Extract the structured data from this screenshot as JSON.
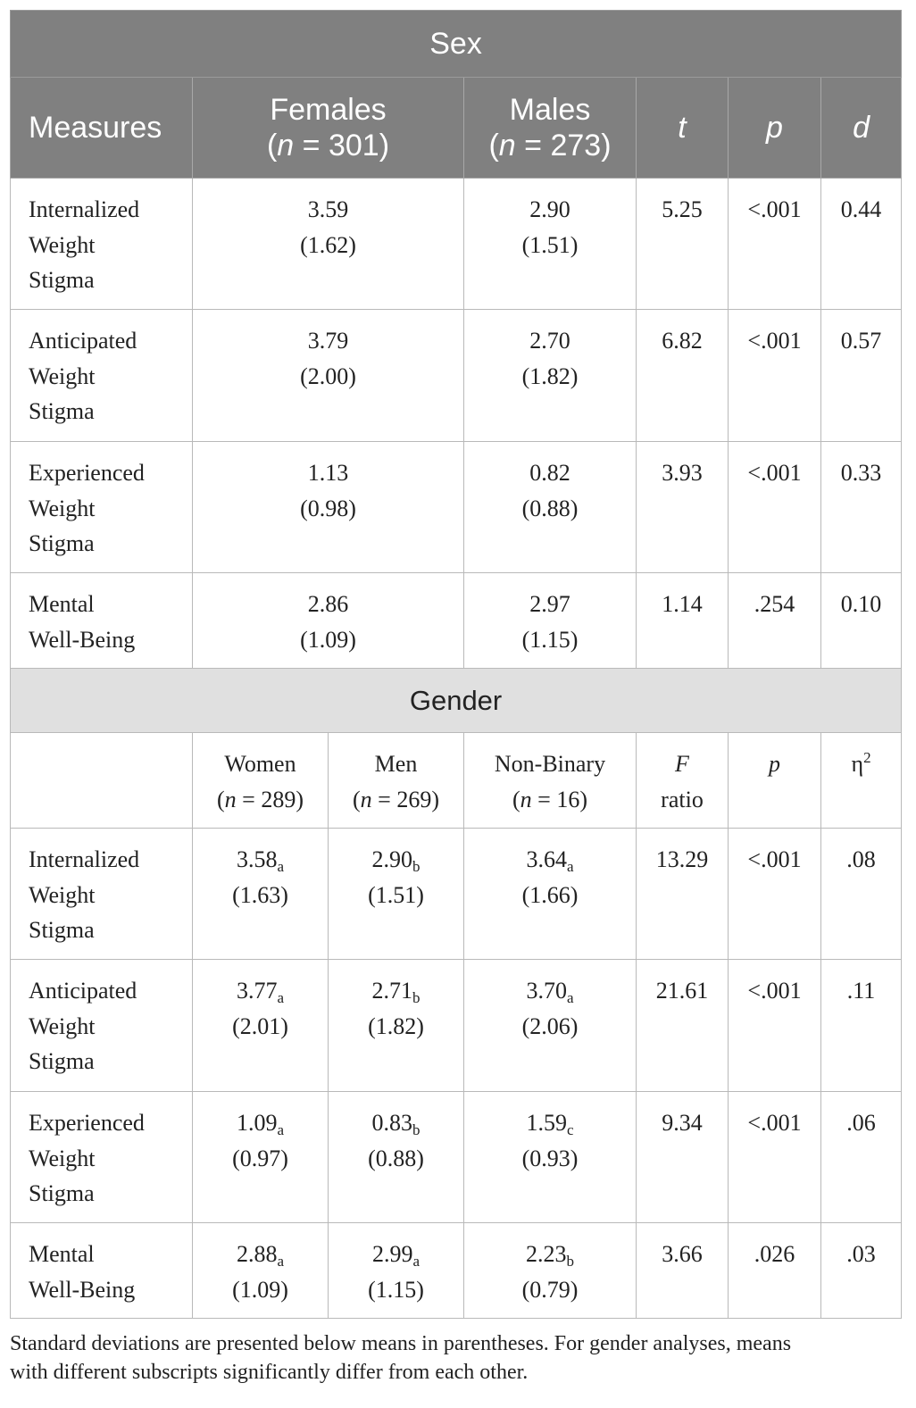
{
  "sex_section": {
    "band_title": "Sex",
    "headers": {
      "measures": "Measures",
      "females_label": "Females",
      "females_n": "= 301)",
      "males_label": "Males",
      "males_n": "= 273)",
      "t": "t",
      "p": "p",
      "d": "d"
    },
    "rows": [
      {
        "measure": [
          "Internalized",
          "Weight",
          "Stigma"
        ],
        "females_mean": "3.59",
        "females_sd": "(1.62)",
        "males_mean": "2.90",
        "males_sd": "(1.51)",
        "t": "5.25",
        "p": "<.001",
        "d": "0.44"
      },
      {
        "measure": [
          "Anticipated",
          "Weight",
          "Stigma"
        ],
        "females_mean": "3.79",
        "females_sd": "(2.00)",
        "males_mean": "2.70",
        "males_sd": "(1.82)",
        "t": "6.82",
        "p": "<.001",
        "d": "0.57"
      },
      {
        "measure": [
          "Experienced",
          "Weight",
          "Stigma"
        ],
        "females_mean": "1.13",
        "females_sd": "(0.98)",
        "males_mean": "0.82",
        "males_sd": "(0.88)",
        "t": "3.93",
        "p": "<.001",
        "d": "0.33"
      },
      {
        "measure": [
          "Mental",
          "Well-Being"
        ],
        "females_mean": "2.86",
        "females_sd": "(1.09)",
        "males_mean": "2.97",
        "males_sd": "(1.15)",
        "t": "1.14",
        "p": ".254",
        "d": "0.10"
      }
    ]
  },
  "gender_section": {
    "band_title": "Gender",
    "headers": {
      "women_label": "Women",
      "women_n": "= 289)",
      "men_label": "Men",
      "men_n": "= 269)",
      "nonbinary_label": "Non-Binary",
      "nonbinary_n": "= 16)",
      "f_label": "F",
      "f_ratio": "ratio",
      "p": "p",
      "eta": "η",
      "eta_sup": "2"
    },
    "rows": [
      {
        "measure": [
          "Internalized",
          "Weight",
          "Stigma"
        ],
        "women_mean": "3.58",
        "women_sub": "a",
        "women_sd": "(1.63)",
        "men_mean": "2.90",
        "men_sub": "b",
        "men_sd": "(1.51)",
        "nb_mean": "3.64",
        "nb_sub": "a",
        "nb_sd": "(1.66)",
        "f": "13.29",
        "p": "<.001",
        "eta2": ".08"
      },
      {
        "measure": [
          "Anticipated",
          "Weight",
          "Stigma"
        ],
        "women_mean": "3.77",
        "women_sub": "a",
        "women_sd": "(2.01)",
        "men_mean": "2.71",
        "men_sub": "b",
        "men_sd": "(1.82)",
        "nb_mean": "3.70",
        "nb_sub": "a",
        "nb_sd": "(2.06)",
        "f": "21.61",
        "p": "<.001",
        "eta2": ".11"
      },
      {
        "measure": [
          "Experienced",
          "Weight",
          "Stigma"
        ],
        "women_mean": "1.09",
        "women_sub": "a",
        "women_sd": "(0.97)",
        "men_mean": "0.83",
        "men_sub": "b",
        "men_sd": "(0.88)",
        "nb_mean": "1.59",
        "nb_sub": "c",
        "nb_sd": "(0.93)",
        "f": "9.34",
        "p": "<.001",
        "eta2": ".06"
      },
      {
        "measure": [
          "Mental",
          "Well-Being"
        ],
        "women_mean": "2.88",
        "women_sub": "a",
        "women_sd": "(1.09)",
        "men_mean": "2.99",
        "men_sub": "a",
        "men_sd": "(1.15)",
        "nb_mean": "2.23",
        "nb_sub": "b",
        "nb_sd": "(0.79)",
        "f": "3.66",
        "p": ".026",
        "eta2": ".03"
      }
    ]
  },
  "note": {
    "line1": "Standard deviations are presented below means in parentheses. For gender analyses, means",
    "line2": "with different subscripts significantly differ from each other."
  },
  "colors": {
    "header_bg": "#808080",
    "gender_band_bg": "#e0e0e0",
    "border": "#b9b9b9"
  }
}
